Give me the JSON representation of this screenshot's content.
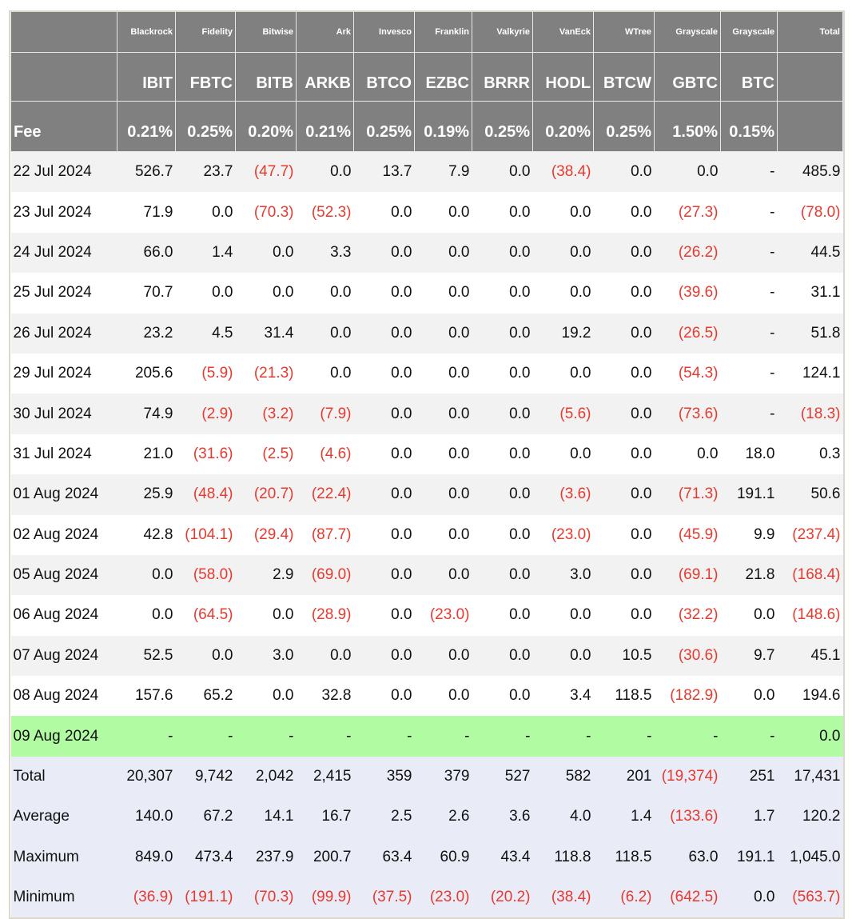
{
  "colors": {
    "header_bg": "#808080",
    "negative": "#e8392e",
    "today_row": "#b1fba3",
    "summary_row": "#e9ecf7"
  },
  "header": {
    "issuers": [
      "",
      "Blackrock",
      "Fidelity",
      "Bitwise",
      "Ark",
      "Invesco",
      "Franklin",
      "Valkyrie",
      "VanEck",
      "WTree",
      "Grayscale",
      "Grayscale",
      "Total"
    ],
    "tickers": [
      "",
      "IBIT",
      "FBTC",
      "BITB",
      "ARKB",
      "BTCO",
      "EZBC",
      "BRRR",
      "HODL",
      "BTCW",
      "GBTC",
      "BTC",
      ""
    ],
    "fees": [
      "Fee",
      "0.21%",
      "0.25%",
      "0.20%",
      "0.21%",
      "0.25%",
      "0.19%",
      "0.25%",
      "0.20%",
      "0.25%",
      "1.50%",
      "0.15%",
      ""
    ]
  },
  "rows": [
    [
      "22 Jul 2024",
      "526.7",
      "23.7",
      "(47.7)",
      "0.0",
      "13.7",
      "7.9",
      "0.0",
      "(38.4)",
      "0.0",
      "0.0",
      "-",
      "485.9"
    ],
    [
      "23 Jul 2024",
      "71.9",
      "0.0",
      "(70.3)",
      "(52.3)",
      "0.0",
      "0.0",
      "0.0",
      "0.0",
      "0.0",
      "(27.3)",
      "-",
      "(78.0)"
    ],
    [
      "24 Jul 2024",
      "66.0",
      "1.4",
      "0.0",
      "3.3",
      "0.0",
      "0.0",
      "0.0",
      "0.0",
      "0.0",
      "(26.2)",
      "-",
      "44.5"
    ],
    [
      "25 Jul 2024",
      "70.7",
      "0.0",
      "0.0",
      "0.0",
      "0.0",
      "0.0",
      "0.0",
      "0.0",
      "0.0",
      "(39.6)",
      "-",
      "31.1"
    ],
    [
      "26 Jul 2024",
      "23.2",
      "4.5",
      "31.4",
      "0.0",
      "0.0",
      "0.0",
      "0.0",
      "19.2",
      "0.0",
      "(26.5)",
      "-",
      "51.8"
    ],
    [
      "29 Jul 2024",
      "205.6",
      "(5.9)",
      "(21.3)",
      "0.0",
      "0.0",
      "0.0",
      "0.0",
      "0.0",
      "0.0",
      "(54.3)",
      "-",
      "124.1"
    ],
    [
      "30 Jul 2024",
      "74.9",
      "(2.9)",
      "(3.2)",
      "(7.9)",
      "0.0",
      "0.0",
      "0.0",
      "(5.6)",
      "0.0",
      "(73.6)",
      "-",
      "(18.3)"
    ],
    [
      "31 Jul 2024",
      "21.0",
      "(31.6)",
      "(2.5)",
      "(4.6)",
      "0.0",
      "0.0",
      "0.0",
      "0.0",
      "0.0",
      "0.0",
      "18.0",
      "0.3"
    ],
    [
      "01 Aug 2024",
      "25.9",
      "(48.4)",
      "(20.7)",
      "(22.4)",
      "0.0",
      "0.0",
      "0.0",
      "(3.6)",
      "0.0",
      "(71.3)",
      "191.1",
      "50.6"
    ],
    [
      "02 Aug 2024",
      "42.8",
      "(104.1)",
      "(29.4)",
      "(87.7)",
      "0.0",
      "0.0",
      "0.0",
      "(23.0)",
      "0.0",
      "(45.9)",
      "9.9",
      "(237.4)"
    ],
    [
      "05 Aug 2024",
      "0.0",
      "(58.0)",
      "2.9",
      "(69.0)",
      "0.0",
      "0.0",
      "0.0",
      "3.0",
      "0.0",
      "(69.1)",
      "21.8",
      "(168.4)"
    ],
    [
      "06 Aug 2024",
      "0.0",
      "(64.5)",
      "0.0",
      "(28.9)",
      "0.0",
      "(23.0)",
      "0.0",
      "0.0",
      "0.0",
      "(32.2)",
      "0.0",
      "(148.6)"
    ],
    [
      "07 Aug 2024",
      "52.5",
      "0.0",
      "3.0",
      "0.0",
      "0.0",
      "0.0",
      "0.0",
      "0.0",
      "10.5",
      "(30.6)",
      "9.7",
      "45.1"
    ],
    [
      "08 Aug 2024",
      "157.6",
      "65.2",
      "0.0",
      "32.8",
      "0.0",
      "0.0",
      "0.0",
      "3.4",
      "118.5",
      "(182.9)",
      "0.0",
      "194.6"
    ],
    [
      "09 Aug 2024",
      "-",
      "-",
      "-",
      "-",
      "-",
      "-",
      "-",
      "-",
      "-",
      "-",
      "-",
      "0.0"
    ]
  ],
  "summary": [
    [
      "Total",
      "20,307",
      "9,742",
      "2,042",
      "2,415",
      "359",
      "379",
      "527",
      "582",
      "201",
      "(19,374)",
      "251",
      "17,431"
    ],
    [
      "Average",
      "140.0",
      "67.2",
      "14.1",
      "16.7",
      "2.5",
      "2.6",
      "3.6",
      "4.0",
      "1.4",
      "(133.6)",
      "1.7",
      "120.2"
    ],
    [
      "Maximum",
      "849.0",
      "473.4",
      "237.9",
      "200.7",
      "63.4",
      "60.9",
      "43.4",
      "118.8",
      "118.5",
      "63.0",
      "191.1",
      "1,045.0"
    ],
    [
      "Minimum",
      "(36.9)",
      "(191.1)",
      "(70.3)",
      "(99.9)",
      "(37.5)",
      "(23.0)",
      "(20.2)",
      "(38.4)",
      "(6.2)",
      "(642.5)",
      "0.0",
      "(563.7)"
    ]
  ]
}
